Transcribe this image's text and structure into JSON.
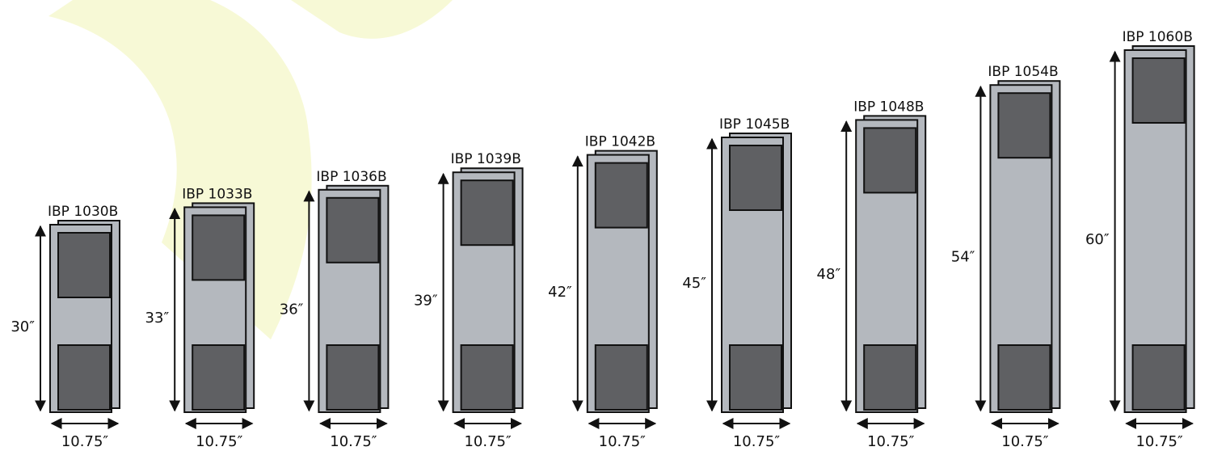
{
  "colors": {
    "watermark": "#f7f9d6",
    "panel_back": "#b4b8be",
    "panel_front": "#b4b8be",
    "outline": "#111111",
    "window": "#5f6063",
    "arrow": "#111111"
  },
  "icons": {
    "height_arrow": "double-headed-vertical-arrow",
    "width_arrow": "double-headed-horizontal-arrow"
  },
  "units": [
    {
      "model": "IBP 1030B",
      "height_label": "30″",
      "width_label": "10.75″",
      "height_in": 30,
      "width_in": 10.75
    },
    {
      "model": "IBP 1033B",
      "height_label": "33″",
      "width_label": "10.75″",
      "height_in": 33,
      "width_in": 10.75
    },
    {
      "model": "IBP 1036B",
      "height_label": "36″",
      "width_label": "10.75″",
      "height_in": 36,
      "width_in": 10.75
    },
    {
      "model": "IBP 1039B",
      "height_label": "39″",
      "width_label": "10.75″",
      "height_in": 39,
      "width_in": 10.75
    },
    {
      "model": "IBP 1042B",
      "height_label": "42″",
      "width_label": "10.75″",
      "height_in": 42,
      "width_in": 10.75
    },
    {
      "model": "IBP 1045B",
      "height_label": "45″",
      "width_label": "10.75″",
      "height_in": 45,
      "width_in": 10.75
    },
    {
      "model": "IBP 1048B",
      "height_label": "48″",
      "width_label": "10.75″",
      "height_in": 48,
      "width_in": 10.75
    },
    {
      "model": "IBP 1054B",
      "height_label": "54″",
      "width_label": "10.75″",
      "height_in": 54,
      "width_in": 10.75
    },
    {
      "model": "IBP 1060B",
      "height_label": "60″",
      "width_label": "10.75″",
      "height_in": 60,
      "width_in": 10.75
    }
  ]
}
